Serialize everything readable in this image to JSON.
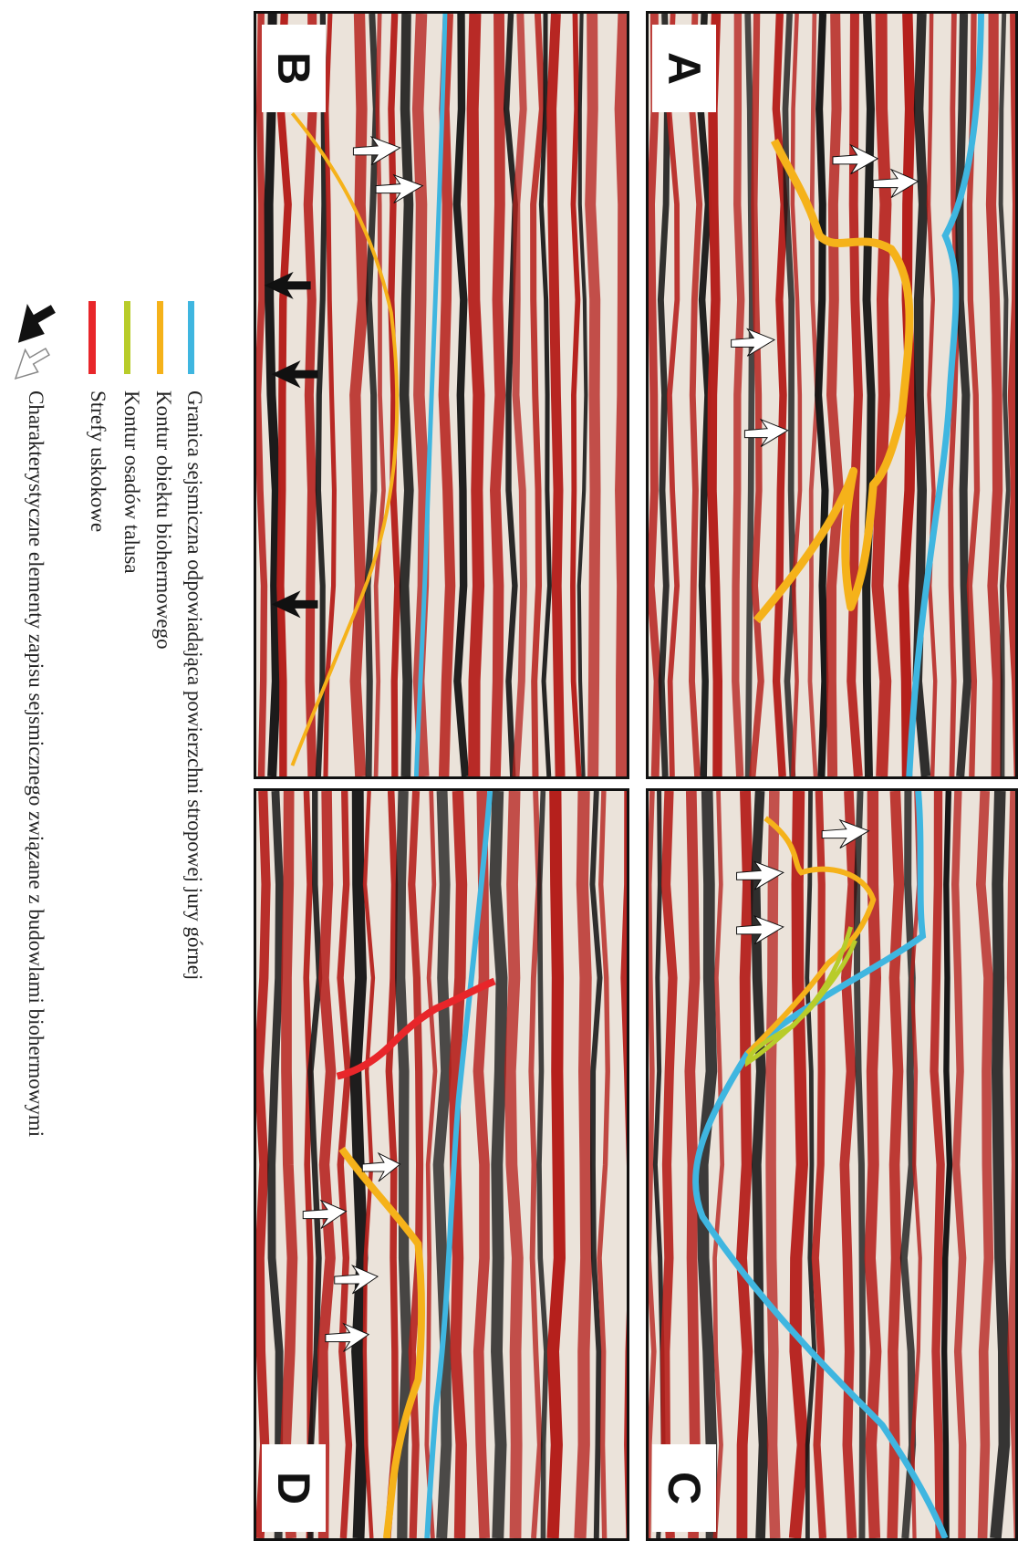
{
  "panels": [
    {
      "id": "A",
      "label": "A"
    },
    {
      "id": "B",
      "label": "B"
    },
    {
      "id": "C",
      "label": "C"
    },
    {
      "id": "D",
      "label": "D"
    }
  ],
  "legend": {
    "items": [
      {
        "key": "top_jurassic",
        "label": "Granica sejsmiczna odpowiadająca powierzchni stropowej jury górnej",
        "color": "#3fb6e0"
      },
      {
        "key": "bioherm",
        "label": "Kontur obiektu biohermowego",
        "color": "#f5b21a"
      },
      {
        "key": "talus",
        "label": "Kontur osadów talusa",
        "color": "#b8cc2a"
      },
      {
        "key": "fault",
        "label": "Strefy uskokowe",
        "color": "#e8262a"
      },
      {
        "key": "arrows",
        "label": "Charakterystyczne elementy zapisu sejsmicznego związane z budowlami biohermowymi",
        "color": "#111111"
      }
    ]
  },
  "colors": {
    "seismic_red": "#b5201c",
    "seismic_dark": "#151515",
    "seismic_light": "#ebe3da",
    "horizon_blue": "#3fb6e0",
    "bioherm_orange": "#f5b21a",
    "talus_green": "#b8cc2a",
    "fault_red": "#e8262a"
  }
}
